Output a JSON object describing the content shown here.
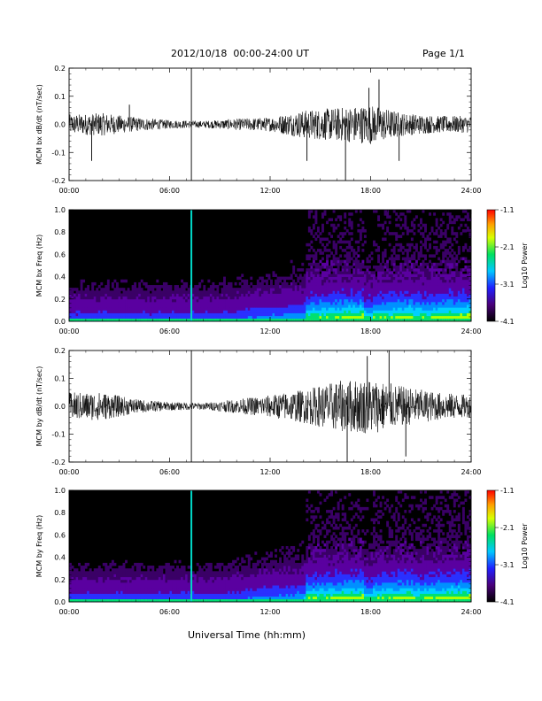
{
  "header": {
    "date_range": "2012/10/18  00:00-24:00 UT",
    "page": "Page 1/1"
  },
  "xaxis_title": "Universal Time (hh:mm)",
  "colorbar": {
    "label": "Log10 Power",
    "ticks": [
      "-1.1",
      "-2.1",
      "-3.1",
      "-4.1"
    ],
    "range": [
      -4.1,
      -1.1
    ]
  },
  "chart_data": [
    {
      "type": "line",
      "ylabel": "MCM bx dB/dt (nT/sec)",
      "xlim": [
        0,
        24
      ],
      "ylim": [
        -0.2,
        0.2
      ],
      "xticks": [
        "00:00",
        "06:00",
        "12:00",
        "18:00",
        "24:00"
      ],
      "yticks": [
        "0.2",
        "0.1",
        "0.0",
        "-0.1",
        "-0.2"
      ],
      "series": [
        {
          "amplitude_envelope": [
            {
              "x": 0,
              "amp": 0.035
            },
            {
              "x": 2,
              "amp": 0.04
            },
            {
              "x": 4,
              "amp": 0.025
            },
            {
              "x": 6,
              "amp": 0.015
            },
            {
              "x": 8,
              "amp": 0.012
            },
            {
              "x": 10,
              "amp": 0.02
            },
            {
              "x": 12,
              "amp": 0.025
            },
            {
              "x": 14,
              "amp": 0.05
            },
            {
              "x": 16,
              "amp": 0.06
            },
            {
              "x": 18,
              "amp": 0.07
            },
            {
              "x": 20,
              "amp": 0.04
            },
            {
              "x": 22,
              "amp": 0.03
            },
            {
              "x": 24,
              "amp": 0.03
            }
          ],
          "spikes": [
            {
              "x": 1.35,
              "y": -0.13
            },
            {
              "x": 3.6,
              "y": 0.07
            },
            {
              "x": 7.3,
              "y": 0.21
            },
            {
              "x": 7.3,
              "y": -0.21
            },
            {
              "x": 14.2,
              "y": -0.13
            },
            {
              "x": 16.5,
              "y": -0.21
            },
            {
              "x": 17.9,
              "y": 0.13
            },
            {
              "x": 18.5,
              "y": 0.16
            },
            {
              "x": 19.7,
              "y": -0.13
            }
          ]
        }
      ]
    },
    {
      "type": "heatmap",
      "ylabel": "MCM bx Freq (Hz)",
      "xlim": [
        0,
        24
      ],
      "ylim": [
        0.0,
        1.0
      ],
      "xticks": [
        "00:00",
        "06:00",
        "12:00",
        "18:00",
        "24:00"
      ],
      "yticks": [
        "1.0",
        "0.8",
        "0.6",
        "0.4",
        "0.2",
        "0.0"
      ],
      "vertical_line_x": 7.3
    },
    {
      "type": "line",
      "ylabel": "MCM by dB/dt (nT/sec)",
      "xlim": [
        0,
        24
      ],
      "ylim": [
        -0.2,
        0.2
      ],
      "xticks": [
        "00:00",
        "06:00",
        "12:00",
        "18:00",
        "24:00"
      ],
      "yticks": [
        "0.2",
        "0.1",
        "0.0",
        "-0.1",
        "-0.2"
      ],
      "series": [
        {
          "amplitude_envelope": [
            {
              "x": 0,
              "amp": 0.05
            },
            {
              "x": 2,
              "amp": 0.05
            },
            {
              "x": 4,
              "amp": 0.025
            },
            {
              "x": 6,
              "amp": 0.015
            },
            {
              "x": 8,
              "amp": 0.012
            },
            {
              "x": 10,
              "amp": 0.025
            },
            {
              "x": 12,
              "amp": 0.04
            },
            {
              "x": 14,
              "amp": 0.06
            },
            {
              "x": 16,
              "amp": 0.09
            },
            {
              "x": 18,
              "amp": 0.1
            },
            {
              "x": 20,
              "amp": 0.07
            },
            {
              "x": 22,
              "amp": 0.05
            },
            {
              "x": 24,
              "amp": 0.04
            }
          ],
          "spikes": [
            {
              "x": 7.3,
              "y": 0.21
            },
            {
              "x": 7.3,
              "y": -0.21
            },
            {
              "x": 16.6,
              "y": -0.21
            },
            {
              "x": 19.1,
              "y": 0.2
            },
            {
              "x": 20.1,
              "y": -0.18
            },
            {
              "x": 17.8,
              "y": 0.18
            }
          ]
        }
      ]
    },
    {
      "type": "heatmap",
      "ylabel": "MCM by Freq (Hz)",
      "xlim": [
        0,
        24
      ],
      "ylim": [
        0.0,
        1.0
      ],
      "xticks": [
        "00:00",
        "06:00",
        "12:00",
        "18:00",
        "24:00"
      ],
      "yticks": [
        "1.0",
        "0.8",
        "0.6",
        "0.4",
        "0.2",
        "0.0"
      ],
      "vertical_line_x": 7.3
    }
  ]
}
